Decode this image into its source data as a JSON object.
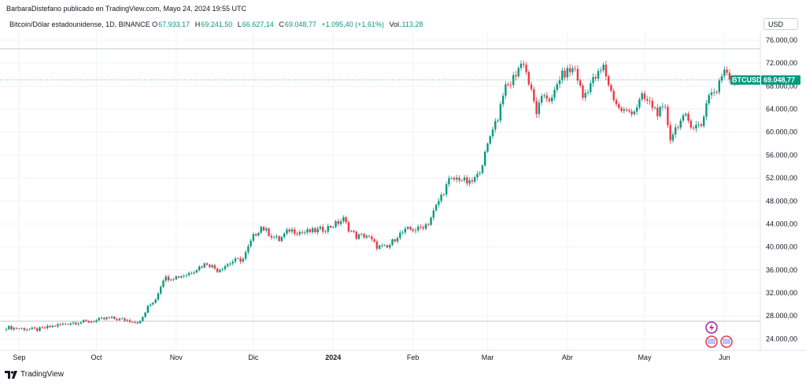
{
  "header": {
    "publisher": "BarbaraDistefano publicado en TradingView.com, Mayo 24, 2024 19:55 UTC"
  },
  "legend": {
    "symbol": "Bitcoin/Dólar estadounidense, 1D, BINANCE",
    "open_label": "O",
    "open": "67.933,17",
    "high_label": "H",
    "high": "69.241,50",
    "low_label": "L",
    "low": "66.627,14",
    "close_label": "C",
    "close": "69.048,77",
    "change": "+1.095,40 (+1,61%)",
    "volume_label": "Vol.",
    "volume": "113,28"
  },
  "currency_button": "USD",
  "price_badge": {
    "symbol": "BTCUSD",
    "price": "69.048,77"
  },
  "footer": {
    "brand": "TradingView"
  },
  "colors": {
    "up": "#089981",
    "down": "#f23645",
    "grid": "#f0f3fa",
    "badge": "#089981",
    "priceline": "#089981"
  },
  "chart_data": {
    "type": "candlestick",
    "y_ticks": [
      "76.000,00",
      "72.000,00",
      "68.000,00",
      "64.000,00",
      "60.000,00",
      "56.000,00",
      "52.000,00",
      "48.000,00",
      "44.000,00",
      "40.000,00",
      "36.000,00",
      "32.000,00",
      "28.000,00",
      "24.000,00"
    ],
    "y_tick_values": [
      76000,
      72000,
      68000,
      64000,
      60000,
      56000,
      52000,
      48000,
      44000,
      40000,
      36000,
      32000,
      28000,
      24000
    ],
    "x_ticks": [
      {
        "label": "Sep",
        "day": 5,
        "bold": false
      },
      {
        "label": "Oct",
        "day": 35,
        "bold": false
      },
      {
        "label": "Nov",
        "day": 66,
        "bold": false
      },
      {
        "label": "Dic",
        "day": 96,
        "bold": false
      },
      {
        "label": "2024",
        "day": 127,
        "bold": true
      },
      {
        "label": "Feb",
        "day": 158,
        "bold": false
      },
      {
        "label": "Mar",
        "day": 187,
        "bold": false
      },
      {
        "label": "Abr",
        "day": 218,
        "bold": false
      },
      {
        "label": "May",
        "day": 248,
        "bold": false
      },
      {
        "label": "Jun",
        "day": 279,
        "bold": false
      }
    ],
    "ylim": [
      22000,
      77500
    ],
    "last_close": 69048.77,
    "key_closes": [
      [
        0,
        26000
      ],
      [
        5,
        25800
      ],
      [
        12,
        25600
      ],
      [
        18,
        26200
      ],
      [
        25,
        26800
      ],
      [
        32,
        27000
      ],
      [
        40,
        27600
      ],
      [
        48,
        27200
      ],
      [
        52,
        26900
      ],
      [
        55,
        29500
      ],
      [
        58,
        31000
      ],
      [
        61,
        34500
      ],
      [
        66,
        34800
      ],
      [
        70,
        35200
      ],
      [
        75,
        36500
      ],
      [
        78,
        37200
      ],
      [
        82,
        36000
      ],
      [
        88,
        37500
      ],
      [
        92,
        37900
      ],
      [
        96,
        41800
      ],
      [
        99,
        43500
      ],
      [
        103,
        42000
      ],
      [
        106,
        41200
      ],
      [
        110,
        43000
      ],
      [
        115,
        42500
      ],
      [
        120,
        42800
      ],
      [
        124,
        43200
      ],
      [
        128,
        44000
      ],
      [
        131,
        44800
      ],
      [
        133,
        43200
      ],
      [
        136,
        41800
      ],
      [
        140,
        42000
      ],
      [
        144,
        40100
      ],
      [
        148,
        39800
      ],
      [
        152,
        42000
      ],
      [
        156,
        43000
      ],
      [
        160,
        43100
      ],
      [
        164,
        44200
      ],
      [
        168,
        48000
      ],
      [
        172,
        51500
      ],
      [
        176,
        52000
      ],
      [
        180,
        51000
      ],
      [
        183,
        52300
      ],
      [
        186,
        56000
      ],
      [
        189,
        61000
      ],
      [
        191,
        62500
      ],
      [
        193,
        67000
      ],
      [
        196,
        68500
      ],
      [
        199,
        71200
      ],
      [
        201,
        72300
      ],
      [
        203,
        68500
      ],
      [
        206,
        63500
      ],
      [
        209,
        66500
      ],
      [
        212,
        65500
      ],
      [
        215,
        69500
      ],
      [
        218,
        70500
      ],
      [
        221,
        71000
      ],
      [
        224,
        66000
      ],
      [
        227,
        68500
      ],
      [
        230,
        70000
      ],
      [
        232,
        71300
      ],
      [
        235,
        67000
      ],
      [
        238,
        64000
      ],
      [
        241,
        63500
      ],
      [
        244,
        63800
      ],
      [
        247,
        66000
      ],
      [
        250,
        65000
      ],
      [
        253,
        63500
      ],
      [
        256,
        63800
      ],
      [
        258,
        59000
      ],
      [
        261,
        61500
      ],
      [
        264,
        62500
      ],
      [
        267,
        61000
      ],
      [
        270,
        61200
      ],
      [
        273,
        66800
      ],
      [
        276,
        67000
      ],
      [
        279,
        71300
      ],
      [
        282,
        69000
      ],
      [
        284,
        69048
      ]
    ]
  }
}
